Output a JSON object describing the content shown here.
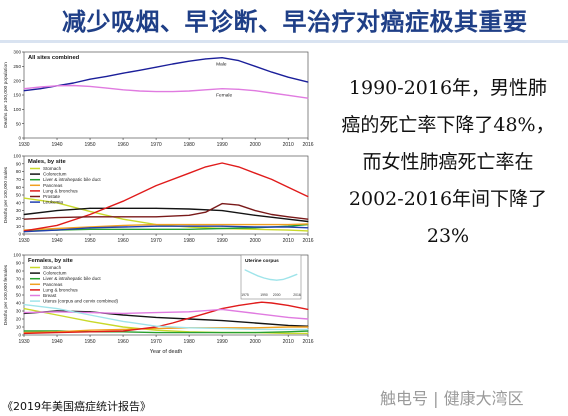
{
  "slide": {
    "title": "减少吸烟、早诊断、早治疗对癌症极其重要",
    "stats_lines": [
      "1990-2016年，男性肺",
      "癌的死亡率下降了48%，",
      "而女性肺癌死亡率在",
      "2002-2016年间下降了",
      "23%"
    ],
    "footnote": "《2019年美国癌症统计报告》",
    "watermark": "触电号 | 健康大湾区"
  },
  "colors": {
    "title": "#1f3f87",
    "Male": "#1b1f9a",
    "Female": "#e07be0",
    "Stomach": "#c9d92a",
    "Colorectum": "#141414",
    "Liver & intrahepatic bile duct": "#27a030",
    "Pancreas": "#f0a020",
    "Lung & bronchus": "#e01b1b",
    "Prostate": "#7a1a1a",
    "Leukemia": "#2040b0",
    "Breast": "#e07be0",
    "Uterus (corpus and cervix combined)": "#9fe4ea"
  },
  "chart_data": [
    {
      "type": "line",
      "title": "All sites combined",
      "ylabel": "Deaths per 100,000 population",
      "xlabel": "",
      "xlim": [
        1930,
        2016
      ],
      "ylim": [
        0,
        300
      ],
      "y_ticks": [
        0,
        50,
        100,
        150,
        200,
        250,
        300
      ],
      "x_ticks": [
        1930,
        1940,
        1950,
        1960,
        1970,
        1980,
        1990,
        2000,
        2010,
        2016
      ],
      "series": [
        {
          "name": "Male",
          "x": [
            1930,
            1935,
            1940,
            1945,
            1950,
            1955,
            1960,
            1965,
            1970,
            1975,
            1980,
            1985,
            1990,
            1995,
            2000,
            2005,
            2010,
            2016
          ],
          "values": [
            165,
            172,
            182,
            192,
            205,
            215,
            226,
            236,
            247,
            258,
            268,
            276,
            280,
            270,
            250,
            230,
            212,
            195
          ]
        },
        {
          "name": "Female",
          "x": [
            1930,
            1935,
            1940,
            1945,
            1950,
            1955,
            1960,
            1965,
            1970,
            1975,
            1980,
            1985,
            1990,
            1995,
            2000,
            2005,
            2010,
            2016
          ],
          "values": [
            172,
            178,
            182,
            183,
            180,
            174,
            168,
            164,
            162,
            162,
            164,
            168,
            172,
            170,
            165,
            157,
            149,
            139
          ]
        }
      ]
    },
    {
      "type": "line",
      "title": "Males, by site",
      "ylabel": "Deaths per 100,000 males",
      "xlabel": "",
      "xlim": [
        1930,
        2016
      ],
      "ylim": [
        0,
        100
      ],
      "y_ticks": [
        0,
        10,
        20,
        30,
        40,
        50,
        60,
        70,
        80,
        90,
        100
      ],
      "x_ticks": [
        1930,
        1940,
        1950,
        1960,
        1970,
        1980,
        1990,
        2000,
        2010,
        2016
      ],
      "legend": "top-left",
      "series": [
        {
          "name": "Stomach",
          "x": [
            1930,
            1940,
            1950,
            1960,
            1970,
            1980,
            1990,
            2000,
            2010,
            2016
          ],
          "values": [
            46,
            40,
            29,
            19,
            12,
            9,
            7,
            6,
            5,
            4
          ]
        },
        {
          "name": "Colorectum",
          "x": [
            1930,
            1940,
            1950,
            1960,
            1970,
            1980,
            1990,
            2000,
            2010,
            2016
          ],
          "values": [
            25,
            30,
            33,
            33,
            33,
            32,
            30,
            24,
            19,
            16
          ]
        },
        {
          "name": "Liver & intrahepatic bile duct",
          "x": [
            1930,
            1940,
            1950,
            1960,
            1970,
            1980,
            1990,
            2000,
            2010,
            2016
          ],
          "values": [
            4,
            5,
            6,
            6,
            6,
            6,
            7,
            8,
            10,
            12
          ]
        },
        {
          "name": "Pancreas",
          "x": [
            1930,
            1940,
            1950,
            1960,
            1970,
            1980,
            1990,
            2000,
            2010,
            2016
          ],
          "values": [
            5,
            7,
            9,
            11,
            12,
            12,
            12,
            12,
            12,
            13
          ]
        },
        {
          "name": "Lung & bronchus",
          "x": [
            1930,
            1940,
            1950,
            1960,
            1970,
            1980,
            1985,
            1990,
            1995,
            2000,
            2005,
            2010,
            2016
          ],
          "values": [
            4,
            11,
            25,
            42,
            62,
            78,
            86,
            91,
            86,
            78,
            70,
            60,
            48
          ]
        },
        {
          "name": "Prostate",
          "x": [
            1930,
            1940,
            1950,
            1960,
            1970,
            1980,
            1985,
            1990,
            1995,
            2000,
            2005,
            2010,
            2016
          ],
          "values": [
            19,
            21,
            22,
            22,
            22,
            24,
            28,
            39,
            37,
            30,
            25,
            22,
            19
          ]
        },
        {
          "name": "Leukemia",
          "x": [
            1930,
            1940,
            1950,
            1960,
            1970,
            1980,
            1990,
            2000,
            2010,
            2016
          ],
          "values": [
            3,
            5,
            8,
            9,
            10,
            10,
            10,
            9,
            9,
            8
          ]
        }
      ]
    },
    {
      "type": "line",
      "title": "Females, by site",
      "ylabel": "Deaths per 100,000 females",
      "xlabel": "Year of death",
      "xlim": [
        1930,
        2016
      ],
      "ylim": [
        0,
        100
      ],
      "y_ticks": [
        0,
        10,
        20,
        30,
        40,
        50,
        60,
        70,
        80,
        90,
        100
      ],
      "x_ticks": [
        1930,
        1940,
        1950,
        1960,
        1970,
        1980,
        1990,
        2000,
        2010,
        2016
      ],
      "legend": "top-left",
      "series": [
        {
          "name": "Stomach",
          "x": [
            1930,
            1940,
            1950,
            1960,
            1970,
            1980,
            1990,
            2000,
            2010,
            2016
          ],
          "values": [
            33,
            25,
            17,
            10,
            6,
            4,
            3,
            3,
            2,
            2
          ]
        },
        {
          "name": "Colorectum",
          "x": [
            1930,
            1940,
            1950,
            1960,
            1970,
            1980,
            1990,
            2000,
            2010,
            2016
          ],
          "values": [
            27,
            30,
            29,
            25,
            22,
            20,
            18,
            15,
            12,
            11
          ]
        },
        {
          "name": "Liver & intrahepatic bile duct",
          "x": [
            1930,
            1940,
            1950,
            1960,
            1970,
            1980,
            1990,
            2000,
            2010,
            2016
          ],
          "values": [
            5,
            5,
            4,
            4,
            3,
            3,
            3,
            3,
            4,
            5
          ]
        },
        {
          "name": "Pancreas",
          "x": [
            1930,
            1940,
            1950,
            1960,
            1970,
            1980,
            1990,
            2000,
            2010,
            2016
          ],
          "values": [
            3,
            4,
            6,
            7,
            8,
            9,
            9,
            9,
            10,
            10
          ]
        },
        {
          "name": "Lung & bronchus",
          "x": [
            1930,
            1940,
            1950,
            1960,
            1970,
            1975,
            1980,
            1985,
            1990,
            1995,
            2000,
            2002,
            2005,
            2010,
            2016
          ],
          "values": [
            2,
            3,
            4,
            5,
            10,
            15,
            21,
            27,
            33,
            37,
            40,
            41,
            40,
            37,
            32
          ]
        },
        {
          "name": "Breast",
          "x": [
            1930,
            1940,
            1950,
            1960,
            1970,
            1980,
            1990,
            2000,
            2010,
            2016
          ],
          "values": [
            28,
            29,
            28,
            27,
            28,
            29,
            32,
            27,
            22,
            20
          ]
        },
        {
          "name": "Uterus (corpus and cervix combined)",
          "x": [
            1930,
            1940,
            1950,
            1960,
            1970,
            1980,
            1990,
            2000,
            2010,
            2016
          ],
          "values": [
            38,
            33,
            25,
            17,
            11,
            9,
            8,
            7,
            7,
            7
          ]
        }
      ]
    },
    {
      "type": "line",
      "title": "Uterine corpus",
      "ylabel": "",
      "xlabel": "",
      "xlim": [
        1975,
        2016
      ],
      "ylim": [
        3,
        6
      ],
      "x_ticks": [
        1975,
        1990,
        2000,
        2016
      ],
      "series": [
        {
          "name": "",
          "x": [
            1975,
            1980,
            1985,
            1990,
            1995,
            2000,
            2005,
            2010,
            2016
          ],
          "values": [
            5.6,
            5.2,
            4.8,
            4.5,
            4.3,
            4.2,
            4.3,
            4.6,
            5.0
          ]
        }
      ]
    }
  ]
}
